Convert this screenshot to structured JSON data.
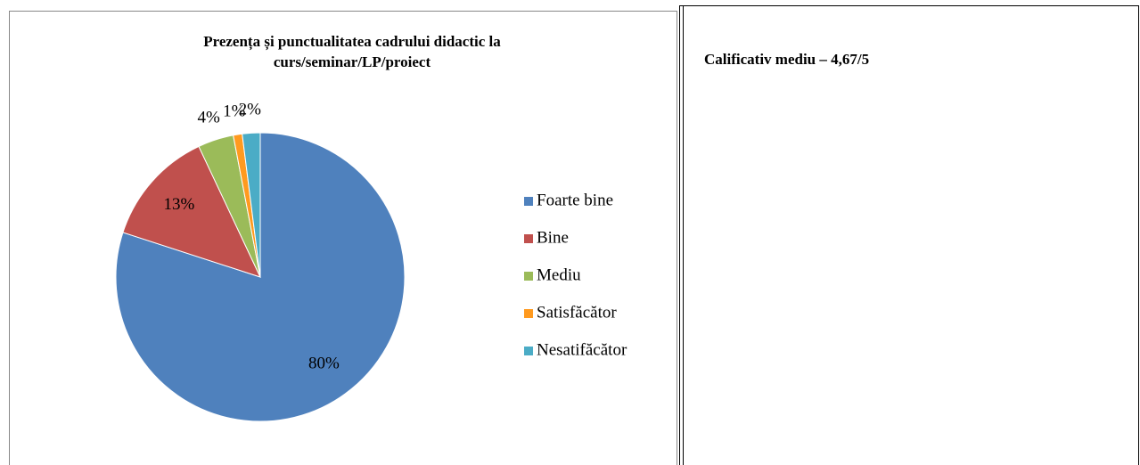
{
  "chart_data": {
    "type": "pie",
    "title": [
      "Prezența și punctualitatea cadrului didactic la",
      "curs/seminar/LP/proiect"
    ],
    "categories": [
      "Foarte bine",
      "Bine",
      "Mediu",
      "Satisfăcător",
      "Nesatifăcător"
    ],
    "values": [
      80,
      13,
      4,
      1,
      2
    ],
    "value_labels": [
      "80%",
      "13%",
      "4%",
      "1%",
      "2%"
    ],
    "colors": [
      "#4f81bd",
      "#c0504d",
      "#9bbb59",
      "#ff9a1f",
      "#4bacc6"
    ],
    "legend": "right"
  },
  "note": "Calificativ mediu – 4,67/5"
}
